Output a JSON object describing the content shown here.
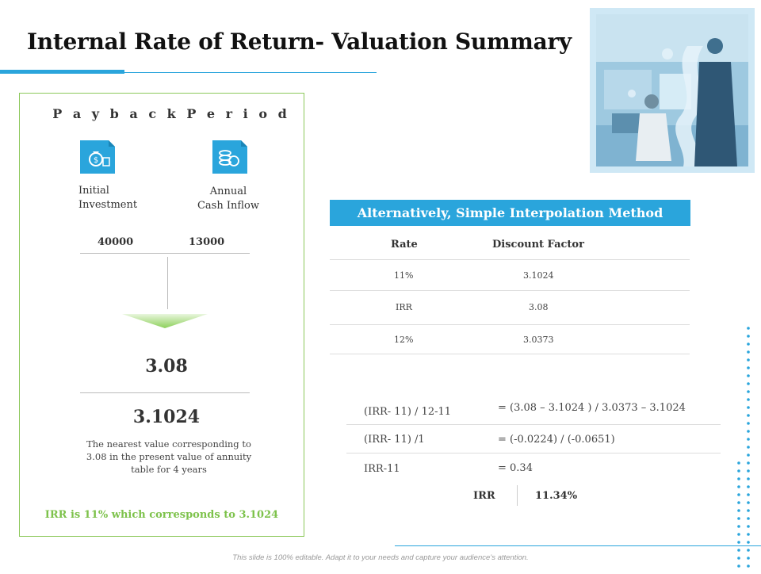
{
  "title": "Internal Rate of Return- Valuation Summary",
  "payback": {
    "title": "P a y b a c k P e r i o d",
    "initial_label_line1": "Initial",
    "initial_label_line2": "Investment",
    "annual_label_line1": "Annual",
    "annual_label_line2": "Cash Inflow",
    "initial_value": "40000",
    "annual_value": "13000",
    "result_value": "3.08",
    "nearest_value": "3.1024",
    "note_line1": "The nearest value corresponding to",
    "note_line2": "3.08 in the present  value of annuity",
    "note_line3": "table for 4 years",
    "conclusion": "IRR is 11% which corresponds to 3.1024",
    "icons": [
      "money-bag-document-icon",
      "coins-document-icon"
    ]
  },
  "interpolation": {
    "header": "Alternatively, Simple Interpolation Method",
    "columns": [
      "Rate",
      "Discount Factor"
    ],
    "rows": [
      {
        "rate": "11%",
        "factor": "3.1024"
      },
      {
        "rate": "IRR",
        "factor": "3.08"
      },
      {
        "rate": "12%",
        "factor": "3.0373"
      }
    ]
  },
  "calculation": {
    "steps": [
      {
        "left": "(IRR- 11) / 12-11",
        "right": "= (3.08 – 3.1024 ) / 3.0373 – 3.1024"
      },
      {
        "left": "(IRR- 11) /1",
        "right": "= (-0.0224) / (-0.0651)"
      },
      {
        "left": "IRR-11",
        "right": "= 0.34"
      }
    ],
    "final_label": "IRR",
    "final_value": "11.34%"
  },
  "footer": "This slide is 100% editable. Adapt it to your needs and capture your audience’s attention.",
  "colors": {
    "accent": "#2aa5dc",
    "green": "#7dc24b",
    "panel_border": "#8cc85a"
  }
}
